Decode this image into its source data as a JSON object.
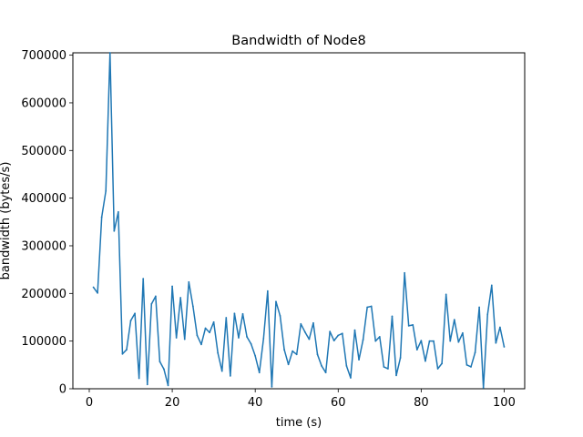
{
  "chart_data": {
    "type": "line",
    "title": "Bandwidth of Node8",
    "xlabel": "time (s)",
    "ylabel": "bandwidth (bytes/s)",
    "xlim": [
      -3.95,
      104.95
    ],
    "ylim": [
      0,
      705000
    ],
    "xticks": [
      0,
      20,
      40,
      60,
      80,
      100
    ],
    "yticks": [
      0,
      100000,
      200000,
      300000,
      400000,
      500000,
      600000,
      700000
    ],
    "grid": false,
    "legend": "none",
    "series": [
      {
        "color": "#1f77b4",
        "x": [
          1,
          2,
          3,
          4,
          5,
          6,
          7,
          8,
          9,
          10,
          11,
          12,
          13,
          14,
          15,
          16,
          17,
          18,
          19,
          20,
          21,
          22,
          23,
          24,
          25,
          26,
          27,
          28,
          29,
          30,
          31,
          32,
          33,
          34,
          35,
          36,
          37,
          38,
          39,
          40,
          41,
          42,
          43,
          44,
          45,
          46,
          47,
          48,
          49,
          50,
          51,
          52,
          53,
          54,
          55,
          56,
          57,
          58,
          59,
          60,
          61,
          62,
          63,
          64,
          65,
          66,
          67,
          68,
          69,
          70,
          71,
          72,
          73,
          74,
          75,
          76,
          77,
          78,
          79,
          80,
          81,
          82,
          83,
          84,
          85,
          86,
          87,
          88,
          89,
          90,
          91,
          92,
          93,
          94,
          95,
          96,
          97,
          98,
          99,
          100
        ],
        "values": [
          213000,
          201000,
          360000,
          415000,
          705000,
          331000,
          371000,
          73000,
          82000,
          143000,
          158000,
          22000,
          231000,
          9000,
          178000,
          194000,
          57000,
          41000,
          7000,
          215000,
          107000,
          191000,
          104000,
          224000,
          173000,
          112000,
          93000,
          127000,
          118000,
          140000,
          75000,
          37000,
          149000,
          27000,
          158000,
          107000,
          157000,
          109000,
          94000,
          69000,
          34000,
          105000,
          205000,
          4000,
          183000,
          153000,
          82000,
          51000,
          79000,
          72000,
          136000,
          119000,
          104000,
          138000,
          72000,
          48000,
          34000,
          120000,
          101000,
          112000,
          116000,
          48000,
          23000,
          123000,
          61000,
          103000,
          171000,
          173000,
          100000,
          109000,
          46000,
          42000,
          152000,
          28000,
          65000,
          243000,
          132000,
          134000,
          82000,
          101000,
          58000,
          100000,
          100000,
          42000,
          53000,
          198000,
          100000,
          145000,
          98000,
          117000,
          50000,
          46000,
          76000,
          171000,
          2000,
          156000,
          217000,
          96000,
          129000,
          88000
        ]
      }
    ]
  }
}
